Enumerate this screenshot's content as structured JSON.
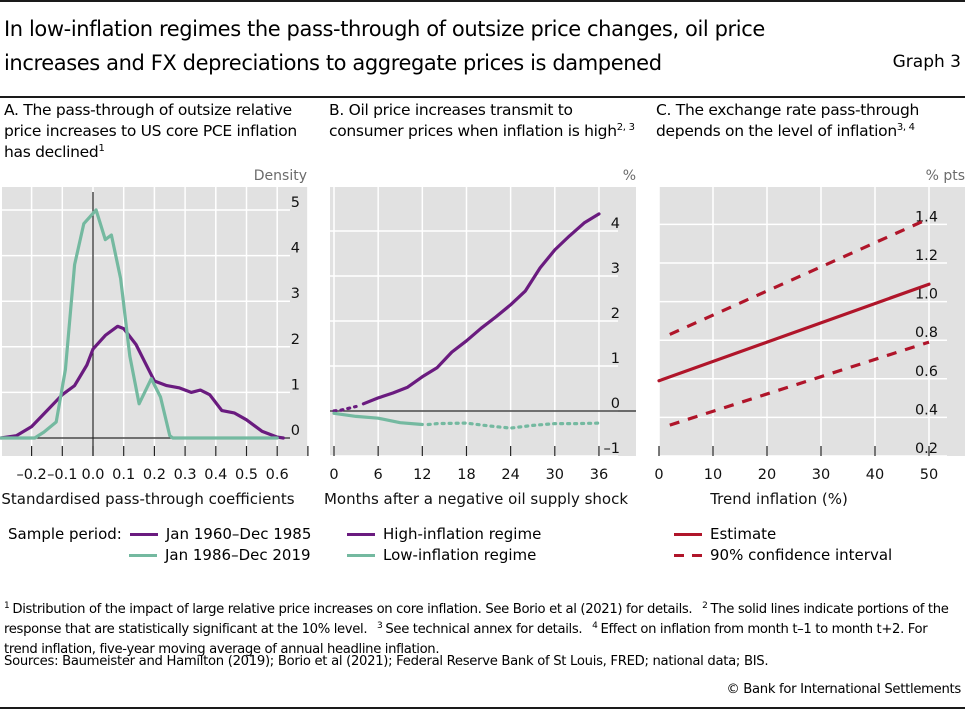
{
  "header": {
    "title": "In low-inflation regimes the pass-through of outsize price changes, oil price increases and FX depreciations to aggregate prices is dampened",
    "graph_number": "Graph 3"
  },
  "colors": {
    "purple": "#6a1b7f",
    "teal": "#74b9a0",
    "red": "#b0152a",
    "plot_bg": "#e1e1e1",
    "grid": "#ffffff"
  },
  "panels": [
    {
      "title": "A. The pass-through of outsize relative price increases to US core PCE inflation has declined",
      "title_sup": "1",
      "legend_prefix": "Sample period:",
      "legend": [
        "Jan 1960–Dec 1985",
        "Jan 1986–Dec 2019"
      ]
    },
    {
      "title": "B. Oil price increases transmit to consumer prices when inflation is high",
      "title_sup": "2, 3",
      "legend": [
        "High-inflation regime",
        "Low-inflation regime"
      ]
    },
    {
      "title": "C. The exchange rate pass-through depends on the level of inflation",
      "title_sup": "3, 4",
      "legend": [
        "Estimate",
        "90% confidence interval"
      ]
    }
  ],
  "chart_data": [
    {
      "type": "line",
      "title": "A. The pass-through of outsize relative price increases to US core PCE inflation has declined",
      "xlabel": "Standardised pass-through coefficients",
      "ylabel": "Density",
      "xlim": [
        -0.3,
        0.7
      ],
      "ylim": [
        0,
        5
      ],
      "xticks": [
        -0.2,
        -0.1,
        0.0,
        0.1,
        0.2,
        0.3,
        0.4,
        0.5,
        0.6
      ],
      "xtick_labels": [
        "–0.2",
        "–0.1",
        "0.0",
        "0.1",
        "0.2",
        "0.3",
        "0.4",
        "0.5",
        "0.6"
      ],
      "yticks": [
        0,
        1,
        2,
        3,
        4,
        5
      ],
      "ytick_labels": [
        "0",
        "1",
        "2",
        "3",
        "4",
        "5"
      ],
      "grid": true,
      "vertical_zero_line": true,
      "series": [
        {
          "name": "Jan 1960–Dec 1985",
          "color": "purple",
          "x": [
            -0.3,
            -0.28,
            -0.25,
            -0.2,
            -0.15,
            -0.1,
            -0.06,
            -0.02,
            0.0,
            0.04,
            0.08,
            0.1,
            0.14,
            0.17,
            0.2,
            0.24,
            0.28,
            0.32,
            0.35,
            0.38,
            0.42,
            0.46,
            0.5,
            0.55,
            0.6,
            0.62
          ],
          "y": [
            0,
            0.02,
            0.05,
            0.25,
            0.6,
            0.95,
            1.15,
            1.6,
            1.95,
            2.25,
            2.45,
            2.4,
            2.05,
            1.65,
            1.25,
            1.15,
            1.1,
            1.0,
            1.05,
            0.95,
            0.6,
            0.55,
            0.4,
            0.15,
            0.02,
            0
          ]
        },
        {
          "name": "Jan 1986–Dec 2019",
          "color": "teal",
          "x": [
            -0.3,
            -0.19,
            -0.16,
            -0.12,
            -0.09,
            -0.06,
            -0.03,
            0.01,
            0.04,
            0.06,
            0.09,
            0.12,
            0.15,
            0.19,
            0.22,
            0.25,
            0.26,
            0.6
          ],
          "y": [
            0,
            0,
            0.13,
            0.35,
            1.5,
            3.8,
            4.7,
            5.0,
            4.35,
            4.45,
            3.5,
            1.8,
            0.75,
            1.3,
            0.9,
            0.05,
            0,
            0
          ]
        }
      ]
    },
    {
      "type": "line",
      "title": "B. Oil price increases transmit to consumer prices when inflation is high",
      "xlabel": "Months after a negative oil supply shock",
      "ylabel": "%",
      "xlim": [
        0,
        36
      ],
      "ylim": [
        -1,
        4
      ],
      "xticks": [
        0,
        6,
        12,
        18,
        24,
        30,
        36
      ],
      "xtick_labels": [
        "0",
        "6",
        "12",
        "18",
        "24",
        "30",
        "36"
      ],
      "yticks": [
        -1,
        0,
        1,
        2,
        3,
        4
      ],
      "ytick_labels": [
        "–1",
        "0",
        "1",
        "2",
        "3",
        "4"
      ],
      "grid": true,
      "annotation": "Solid segments are statistically significant at the 10% level; dotted segments are not",
      "series": [
        {
          "name": "High-inflation regime",
          "color": "purple",
          "x": [
            0,
            1,
            3,
            4,
            6,
            8,
            10,
            12,
            14,
            16,
            18,
            20,
            22,
            24,
            26,
            28,
            30,
            32,
            34,
            36
          ],
          "y": [
            0,
            0.02,
            0.1,
            0.16,
            0.29,
            0.4,
            0.53,
            0.76,
            0.96,
            1.31,
            1.56,
            1.84,
            2.09,
            2.36,
            2.67,
            3.18,
            3.58,
            3.89,
            4.18,
            4.38
          ],
          "significant_from_x": 4
        },
        {
          "name": "Low-inflation regime",
          "color": "teal",
          "x": [
            0,
            3,
            6,
            9,
            12,
            14,
            18,
            21,
            24,
            27,
            30,
            33,
            36
          ],
          "y": [
            -0.05,
            -0.12,
            -0.16,
            -0.26,
            -0.3,
            -0.28,
            -0.27,
            -0.33,
            -0.38,
            -0.32,
            -0.28,
            -0.28,
            -0.27
          ],
          "significant_until_x": 12
        }
      ]
    },
    {
      "type": "line",
      "title": "C. The exchange rate pass-through depends on the level of inflation",
      "xlabel": "Trend inflation (%)",
      "ylabel": "% pts",
      "xlim": [
        0,
        50
      ],
      "ylim": [
        0.2,
        1.4
      ],
      "xticks": [
        0,
        10,
        20,
        30,
        40,
        50
      ],
      "xtick_labels": [
        "0",
        "10",
        "20",
        "30",
        "40",
        "50"
      ],
      "yticks": [
        0.2,
        0.4,
        0.6,
        0.8,
        1.0,
        1.2,
        1.4
      ],
      "ytick_labels": [
        "0.2",
        "0.4",
        "0.6",
        "0.8",
        "1.0",
        "1.2",
        "1.4"
      ],
      "grid": true,
      "series": [
        {
          "name": "Estimate",
          "color": "red",
          "style": "solid",
          "x": [
            0,
            50
          ],
          "y": [
            0.59,
            1.09
          ]
        },
        {
          "name": "90% confidence interval (upper)",
          "color": "red",
          "style": "dashed",
          "x": [
            2,
            50
          ],
          "y": [
            0.83,
            1.43
          ]
        },
        {
          "name": "90% confidence interval (lower)",
          "color": "red",
          "style": "dashed",
          "x": [
            2,
            50
          ],
          "y": [
            0.36,
            0.79
          ]
        }
      ]
    }
  ],
  "footnotes": [
    {
      "num": "1",
      "text": "Distribution of the impact of large relative price increases on core inflation. See Borio et al (2021) for details."
    },
    {
      "num": "2",
      "text": "The solid lines indicate portions of the response that are statistically significant at the 10% level."
    },
    {
      "num": "3",
      "text": "See technical annex for details."
    },
    {
      "num": "4",
      "text": "Effect on inflation from month t–1 to month t+2. For trend inflation, five-year moving average of annual headline inflation."
    }
  ],
  "sources": "Sources: Baumeister and Hamilton (2019); Borio et al (2021); Federal Reserve Bank of St Louis, FRED; national data; BIS.",
  "copyright": "© Bank for International Settlements"
}
